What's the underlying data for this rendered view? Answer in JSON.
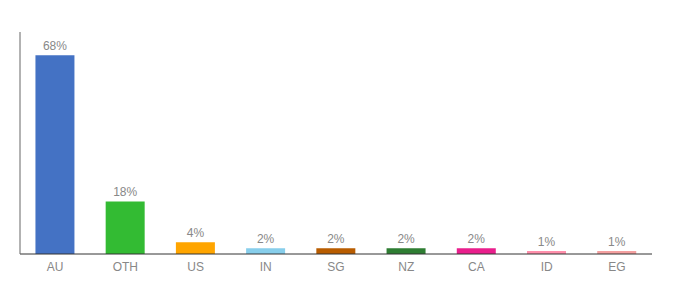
{
  "chart_data": {
    "type": "bar",
    "categories": [
      "AU",
      "OTH",
      "US",
      "IN",
      "SG",
      "NZ",
      "CA",
      "ID",
      "EG"
    ],
    "values": [
      68,
      18,
      4,
      2,
      2,
      2,
      2,
      1,
      1
    ],
    "value_labels": [
      "68%",
      "18%",
      "4%",
      "2%",
      "2%",
      "2%",
      "2%",
      "1%",
      "1%"
    ],
    "colors": [
      "#4472C4",
      "#33BB33",
      "#FFA500",
      "#87CEEB",
      "#B85C00",
      "#2E7D32",
      "#E91E8C",
      "#FF8FAB",
      "#F4A0A0"
    ],
    "ylim": [
      0,
      76
    ],
    "data_labels": true,
    "tick_labels": "x",
    "grid": false
  }
}
